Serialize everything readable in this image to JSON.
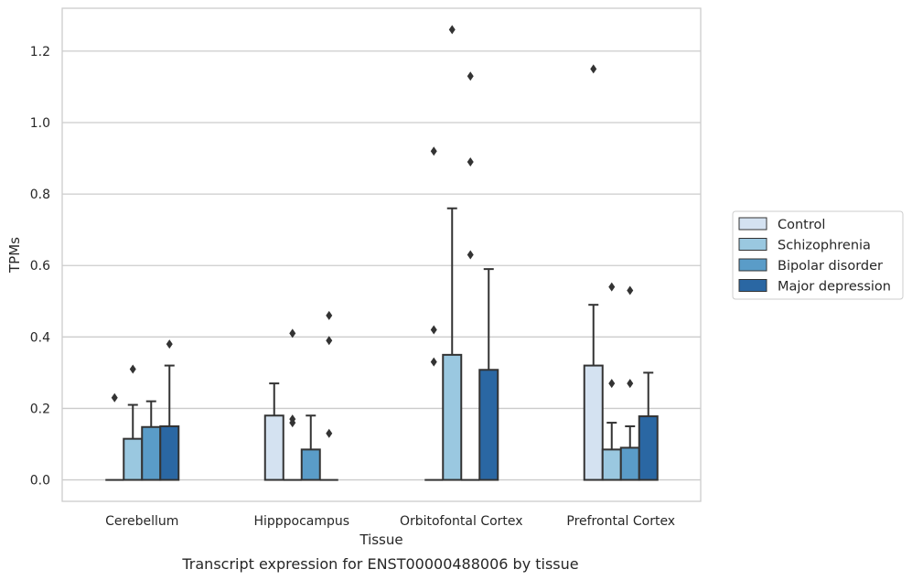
{
  "chart_data": {
    "type": "bar",
    "caption": "Transcript expression for ENST00000488006 by tissue",
    "xlabel": "Tissue",
    "ylabel": "TPMs",
    "ylim": [
      -0.06,
      1.32
    ],
    "yticks": [
      "0.0",
      "0.2",
      "0.4",
      "0.6",
      "0.8",
      "1.0",
      "1.2"
    ],
    "grid": true,
    "legend_position": "right",
    "categories": [
      "Cerebellum",
      "Hipppocampus",
      "Orbitofontal Cortex",
      "Prefrontal Cortex"
    ],
    "series": [
      {
        "name": "Control",
        "color": "#d4e2f1",
        "values": [
          0.0,
          0.18,
          0.0,
          0.32
        ],
        "err_upper": [
          0.0,
          0.27,
          0.0,
          0.49
        ],
        "outliers": [
          [
            0.23
          ],
          [],
          [
            0.33,
            0.42,
            0.92
          ],
          [
            1.15
          ]
        ]
      },
      {
        "name": "Schizophrenia",
        "color": "#9ac8e0",
        "values": [
          0.115,
          0.0,
          0.35,
          0.085
        ],
        "err_upper": [
          0.21,
          0.0,
          0.76,
          0.16
        ],
        "outliers": [
          [
            0.31
          ],
          [
            0.16,
            0.17,
            0.41
          ],
          [
            1.26
          ],
          [
            0.27,
            0.54
          ]
        ]
      },
      {
        "name": "Bipolar disorder",
        "color": "#5a9cc8",
        "values": [
          0.148,
          0.085,
          0.0,
          0.09
        ],
        "err_upper": [
          0.22,
          0.18,
          0.0,
          0.15
        ],
        "outliers": [
          [],
          [],
          [
            0.63,
            0.89,
            1.13
          ],
          [
            0.27,
            0.53
          ]
        ]
      },
      {
        "name": "Major depression",
        "color": "#2a67a3",
        "values": [
          0.15,
          0.0,
          0.308,
          0.178
        ],
        "err_upper": [
          0.32,
          0.0,
          0.59,
          0.3
        ],
        "outliers": [
          [
            0.38
          ],
          [
            0.13,
            0.39,
            0.46
          ],
          [],
          []
        ]
      }
    ]
  }
}
